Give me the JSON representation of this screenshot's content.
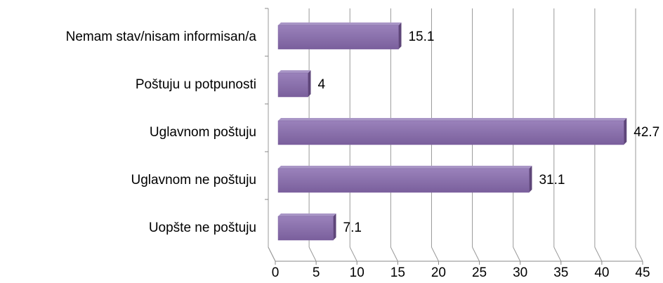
{
  "chart_data": {
    "type": "bar",
    "orientation": "horizontal",
    "categories": [
      "Nemam stav/nisam informisan/a",
      "Poštuju u potpunosti",
      "Uglavnom poštuju",
      "Uglavnom ne poštuju",
      "Uopšte ne poštuju"
    ],
    "values": [
      15.1,
      4,
      42.7,
      31.1,
      7.1
    ],
    "color": "#8064a2",
    "xlim": [
      0,
      45
    ],
    "xticks": [
      0,
      5,
      10,
      15,
      20,
      25,
      30,
      35,
      40,
      45
    ],
    "grid": true
  }
}
